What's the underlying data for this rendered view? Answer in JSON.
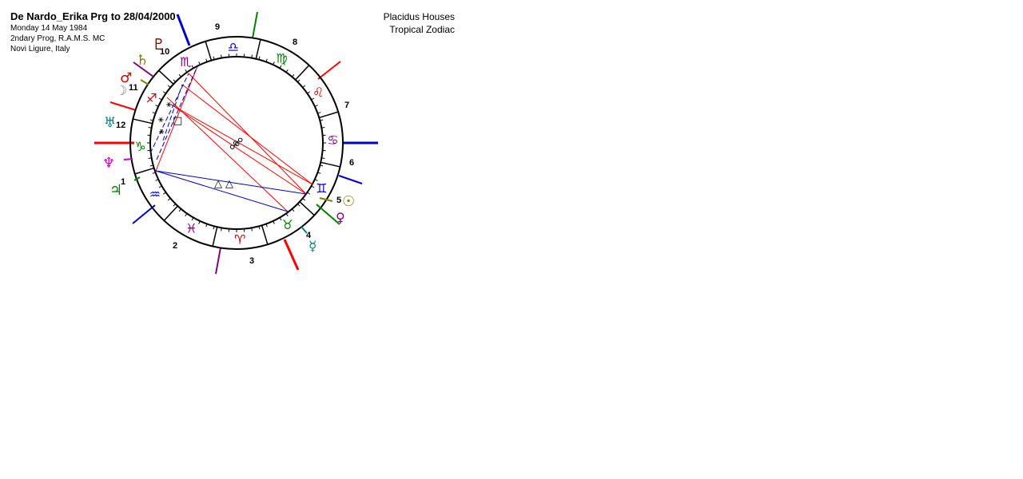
{
  "header": {
    "title": "De Nardo_Erika Prg to 28/04/2000",
    "date": "Monday 14 May 1984",
    "method": "2ndary Prog, R.A.M.S. MC",
    "place": "Novi Ligure, Italy"
  },
  "settings": {
    "house_system": "Placidus Houses",
    "zodiac": "Tropical Zodiac"
  },
  "wheel": {
    "signs": [
      {
        "name": "libra",
        "glyph": "♎",
        "color": "#0000cc"
      },
      {
        "name": "virgo",
        "glyph": "♍",
        "color": "#008000"
      },
      {
        "name": "leo",
        "glyph": "♌",
        "color": "#cc0000"
      },
      {
        "name": "cancer",
        "glyph": "♋",
        "color": "#800080"
      },
      {
        "name": "gemini",
        "glyph": "♊",
        "color": "#0000cc"
      },
      {
        "name": "taurus",
        "glyph": "♉",
        "color": "#008000"
      },
      {
        "name": "aries",
        "glyph": "♈",
        "color": "#cc0000"
      },
      {
        "name": "pisces",
        "glyph": "♓",
        "color": "#800080"
      },
      {
        "name": "aquarius",
        "glyph": "♒",
        "color": "#0000cc"
      },
      {
        "name": "capricorn",
        "glyph": "♑",
        "color": "#008000"
      },
      {
        "name": "sagittarius",
        "glyph": "♐",
        "color": "#cc0000"
      },
      {
        "name": "scorpio",
        "glyph": "♏",
        "color": "#800080"
      }
    ],
    "house_numbers": [
      "1",
      "2",
      "3",
      "4",
      "5",
      "6",
      "7",
      "8",
      "9",
      "10",
      "11",
      "12"
    ],
    "planets": [
      {
        "name": "pluto",
        "glyph": "♇",
        "color": "#800000"
      },
      {
        "name": "saturn",
        "glyph": "♄",
        "color": "#808000"
      },
      {
        "name": "mars",
        "glyph": "♂",
        "color": "#cc0000"
      },
      {
        "name": "moon",
        "glyph": "☽",
        "color": "#808080"
      },
      {
        "name": "uranus",
        "glyph": "♅",
        "color": "#008080"
      },
      {
        "name": "neptune",
        "glyph": "♆",
        "color": "#cc00cc"
      },
      {
        "name": "jupiter",
        "glyph": "♃",
        "color": "#008000"
      },
      {
        "name": "sun",
        "glyph": "☉",
        "color": "#808000"
      },
      {
        "name": "venus",
        "glyph": "♀",
        "color": "#800080"
      },
      {
        "name": "mercury",
        "glyph": "☿",
        "color": "#008080"
      }
    ],
    "aspect_symbols": {
      "trine": "△",
      "square": "□",
      "sextile": "⚹",
      "opposition": "☍"
    },
    "colors": {
      "hard_aspect": "#ff0000",
      "soft_aspect": "#0000cc",
      "ring": "#000000"
    }
  }
}
